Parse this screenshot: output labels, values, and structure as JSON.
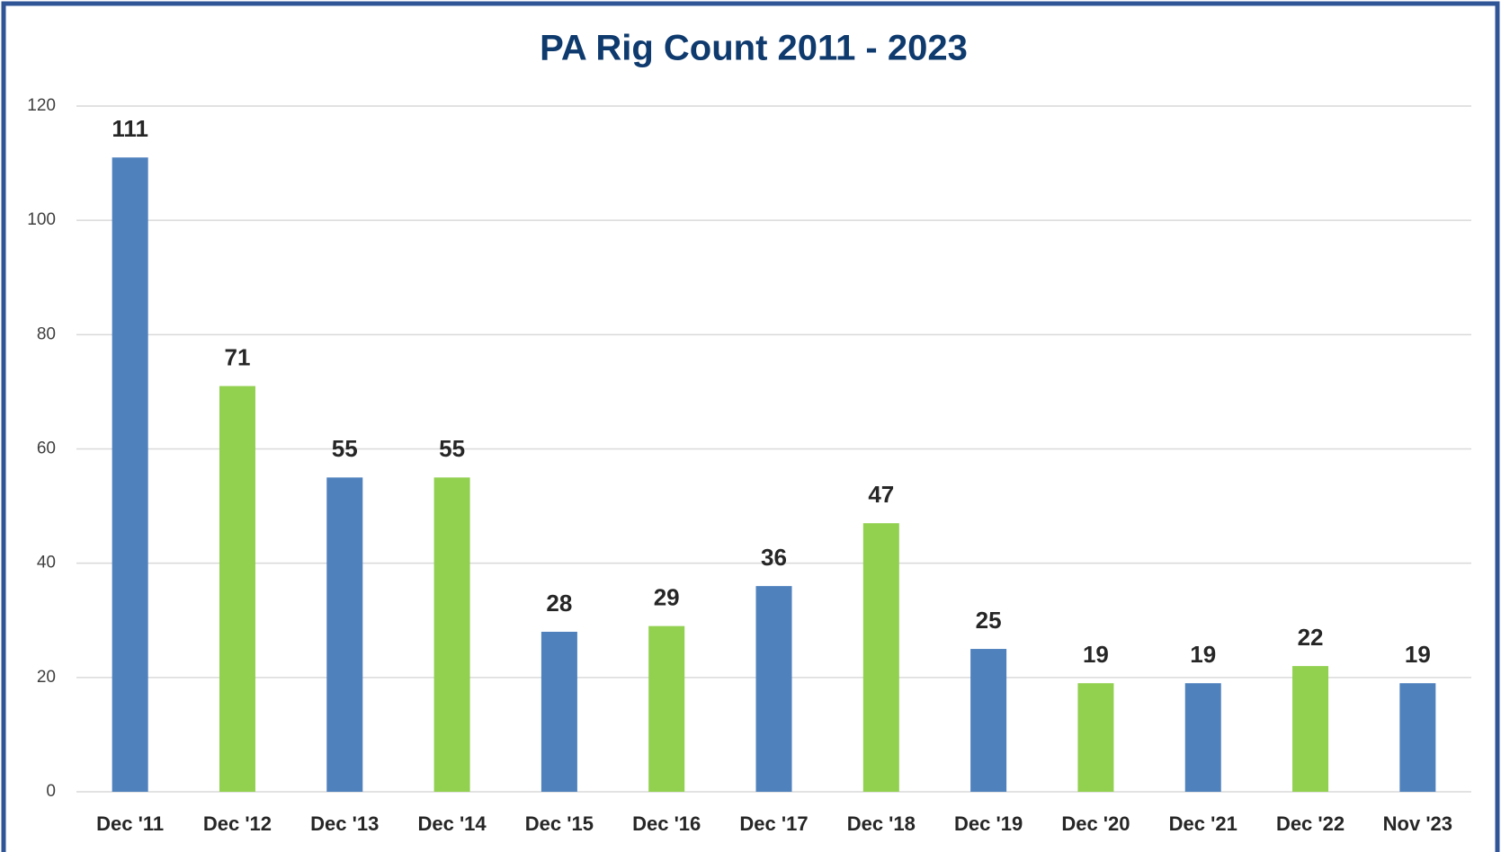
{
  "chart_data": {
    "type": "bar",
    "title": "PA Rig Count 2011 - 2023",
    "categories": [
      "Dec '11",
      "Dec '12",
      "Dec '13",
      "Dec '14",
      "Dec '15",
      "Dec '16",
      "Dec '17",
      "Dec '18",
      "Dec '19",
      "Dec '20",
      "Dec '21",
      "Dec '22",
      "Nov '23"
    ],
    "values": [
      111,
      71,
      55,
      55,
      28,
      29,
      36,
      47,
      25,
      19,
      19,
      22,
      19
    ],
    "colors": [
      "#4f81bd",
      "#92d050",
      "#4f81bd",
      "#92d050",
      "#4f81bd",
      "#92d050",
      "#4f81bd",
      "#92d050",
      "#4f81bd",
      "#92d050",
      "#4f81bd",
      "#92d050",
      "#4f81bd"
    ],
    "ylim": [
      0,
      120
    ],
    "yticks": [
      0,
      20,
      40,
      60,
      80,
      100,
      120
    ],
    "grid": true
  }
}
